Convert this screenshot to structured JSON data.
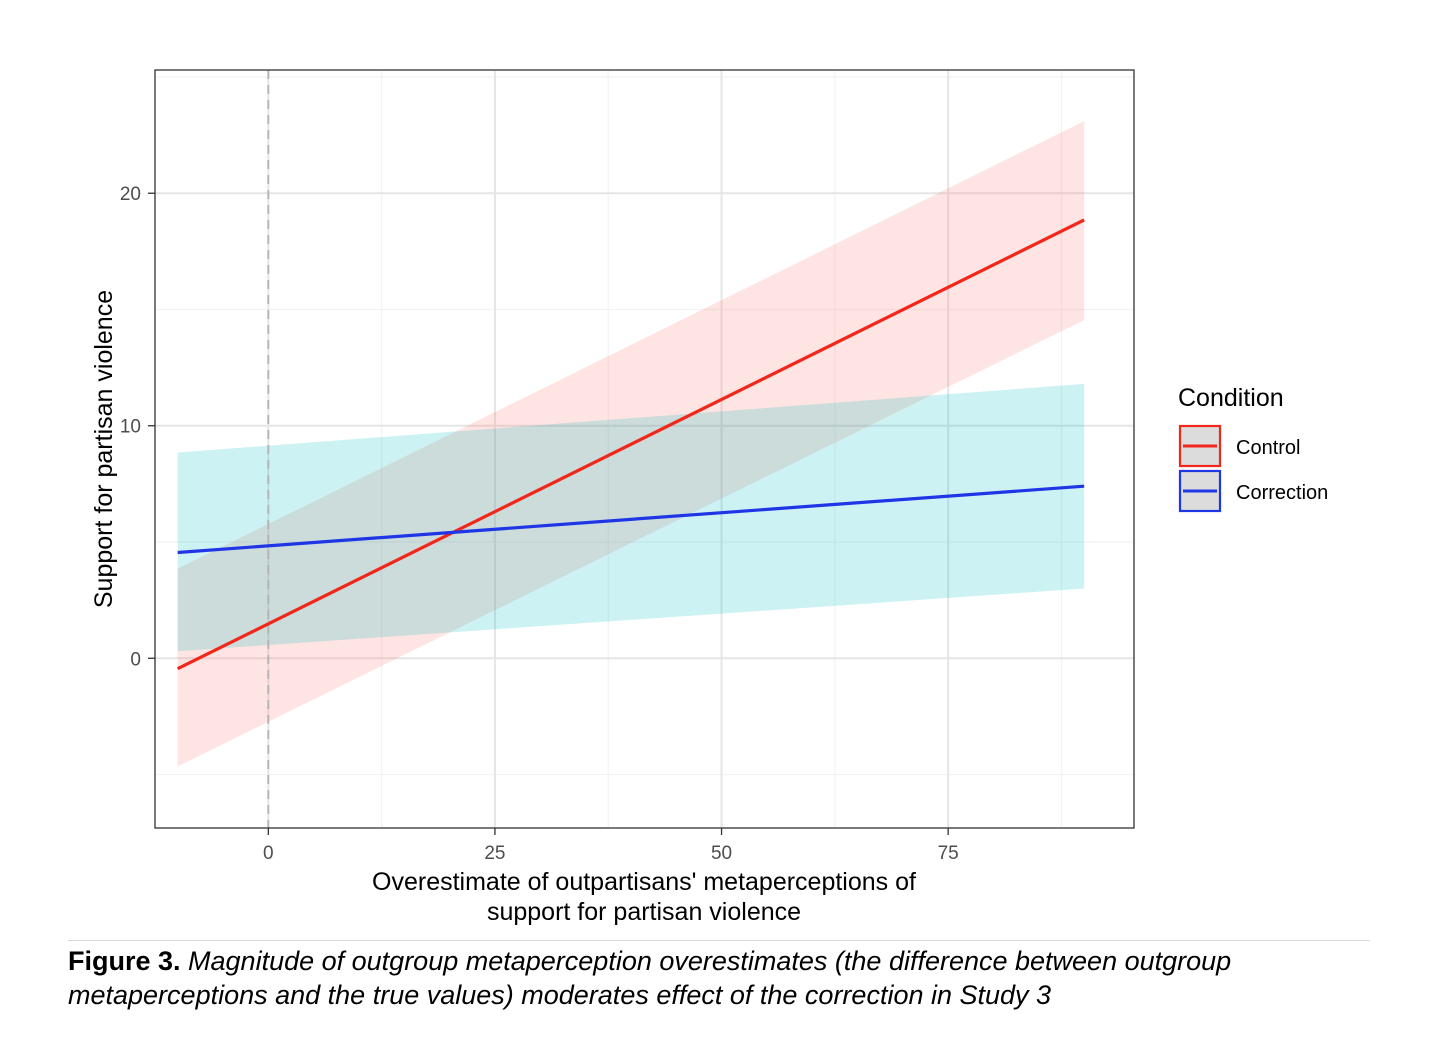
{
  "chart_data": {
    "type": "line",
    "xlabel_lines": [
      "Overestimate of outpartisans' metaperceptions of",
      "support for partisan violence"
    ],
    "ylabel": "Support for partisan violence",
    "xlim": [
      -12.5,
      95.5
    ],
    "ylim": [
      -7.3,
      25.3
    ],
    "xticks": [
      0,
      25,
      50,
      75
    ],
    "xtick_labels": [
      "0",
      "25",
      "50",
      "75"
    ],
    "yticks": [
      0,
      10,
      20
    ],
    "ytick_labels": [
      "0",
      "10",
      "20"
    ],
    "x_minor_grid": [
      -12.5,
      12.5,
      37.5,
      62.5,
      87.5
    ],
    "y_minor_grid": [
      -5,
      5,
      15,
      25
    ],
    "vline_dashed": 0,
    "grid": true,
    "legend": {
      "title": "Condition",
      "position": "right"
    },
    "series": [
      {
        "name": "Control",
        "color": "#f2271c",
        "ribbon_color": "#f8766d",
        "x": [
          -10,
          90
        ],
        "y": [
          -0.45,
          18.85
        ],
        "ci_lower": [
          -4.65,
          14.55
        ],
        "ci_upper": [
          3.85,
          23.1
        ]
      },
      {
        "name": "Correction",
        "color": "#1f36e6",
        "ribbon_color": "#00bfc4",
        "x": [
          -10,
          90
        ],
        "y": [
          4.55,
          7.4
        ],
        "ci_lower": [
          0.3,
          3.0
        ],
        "ci_upper": [
          8.85,
          11.8
        ]
      }
    ]
  },
  "caption": {
    "label": "Figure 3.",
    "text": " Magnitude of outgroup metaperception overestimates (the difference between outgroup metaperceptions and the true values) moderates effect of the correction in Study 3"
  }
}
